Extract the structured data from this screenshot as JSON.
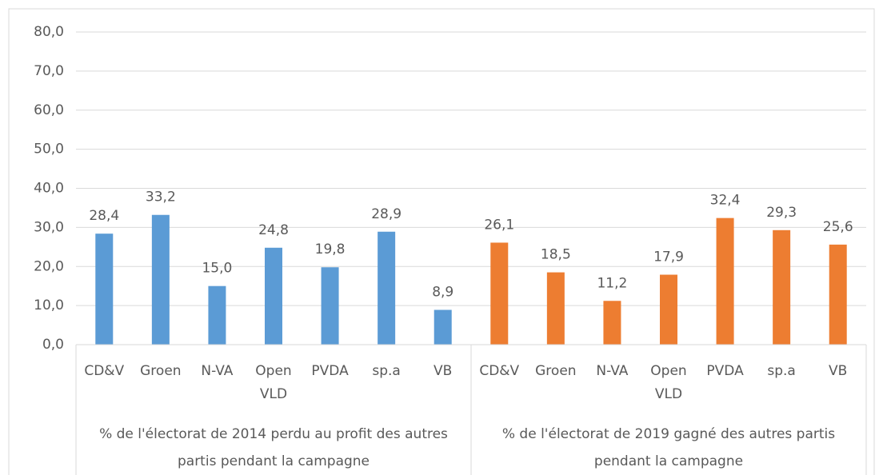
{
  "chart_data": {
    "type": "grouped-bar",
    "groups": [
      {
        "label": "% de l'électorat de 2014 perdu au profit des autres partis pendant la campagne",
        "color": "#5b9bd5",
        "categories": [
          "CD&V",
          "Groen",
          "N-VA",
          "Open VLD",
          "PVDA",
          "sp.a",
          "VB"
        ],
        "values": [
          28.4,
          33.2,
          15.0,
          24.8,
          19.8,
          28.9,
          8.9
        ],
        "value_labels": [
          "28,4",
          "33,2",
          "15,0",
          "24,8",
          "19,8",
          "28,9",
          "8,9"
        ]
      },
      {
        "label": "% de l'électorat de 2019 gagné des autres partis pendant la campagne",
        "color": "#ed7d31",
        "categories": [
          "CD&V",
          "Groen",
          "N-VA",
          "Open VLD",
          "PVDA",
          "sp.a",
          "VB"
        ],
        "values": [
          26.1,
          18.5,
          11.2,
          17.9,
          32.4,
          29.3,
          25.6
        ],
        "value_labels": [
          "26,1",
          "18,5",
          "11,2",
          "17,9",
          "32,4",
          "29,3",
          "25,6"
        ]
      }
    ],
    "ylim": [
      0,
      80
    ],
    "yticks": [
      {
        "value": 0,
        "label": "0,0"
      },
      {
        "value": 10,
        "label": "10,0"
      },
      {
        "value": 20,
        "label": "20,0"
      },
      {
        "value": 30,
        "label": "30,0"
      },
      {
        "value": 40,
        "label": "40,0"
      },
      {
        "value": 50,
        "label": "50,0"
      },
      {
        "value": 60,
        "label": "60,0"
      },
      {
        "value": 70,
        "label": "70,0"
      },
      {
        "value": 80,
        "label": "80,0"
      }
    ],
    "grid": true
  }
}
